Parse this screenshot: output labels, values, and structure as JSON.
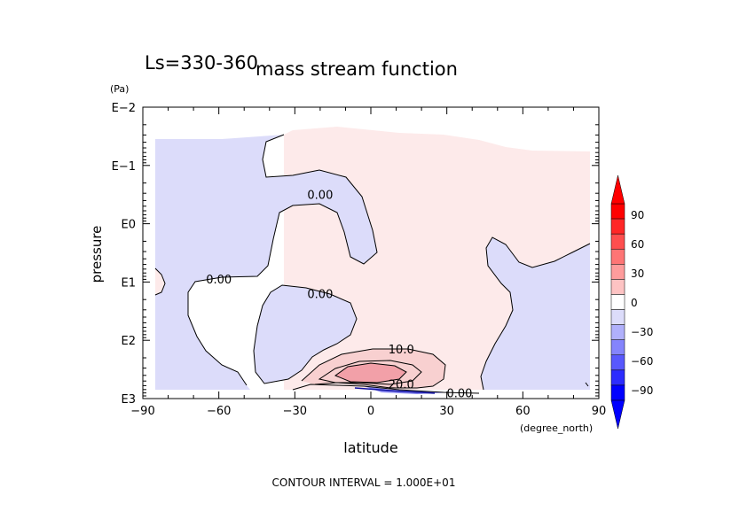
{
  "chart_data": {
    "type": "contour",
    "title_left": "Ls=330-360",
    "title": "mass stream function",
    "xlabel": "latitude",
    "xunit": "(degree_north)",
    "ylabel": "pressure",
    "yunit": "(Pa)",
    "xlim": [
      -90,
      90
    ],
    "xticks": [
      -90,
      -60,
      -30,
      0,
      30,
      60,
      90
    ],
    "xtick_labels": [
      "−90",
      "−60",
      "−30",
      "0",
      "30",
      "60",
      "90"
    ],
    "ylim_log10": [
      -2,
      3
    ],
    "y_log_scale": true,
    "y_reversed": true,
    "yticks": [
      "E−2",
      "E−1",
      "E0",
      "E1",
      "E2",
      "E3"
    ],
    "contour_labels": [
      {
        "text": "0.00",
        "lat": -20,
        "log10_p": -0.5
      },
      {
        "text": "0.00",
        "lat": -60,
        "log10_p": 0.95
      },
      {
        "text": "0.00",
        "lat": -20,
        "log10_p": 1.2
      },
      {
        "text": "10.0",
        "lat": 12,
        "log10_p": 2.15
      },
      {
        "text": "20.0",
        "lat": 12,
        "log10_p": 2.75
      },
      {
        "text": "0.00",
        "lat": 35,
        "log10_p": 2.9
      }
    ],
    "colorbar": {
      "levels": [
        90,
        60,
        30,
        0,
        -30,
        -60,
        -90
      ],
      "labels": [
        "90",
        "60",
        "30",
        "0",
        "−30",
        "−60",
        "−90"
      ],
      "positive_color": "#ff0000",
      "negative_color": "#0000ff"
    },
    "footer": "CONTOUR INTERVAL = 1.000E+01"
  },
  "colors": {
    "positive_fill": "#fdeaea",
    "negative_fill": "#dcdcfa",
    "positive_core": "#f2a0a8",
    "positive_mid": "#f8d0d0"
  }
}
